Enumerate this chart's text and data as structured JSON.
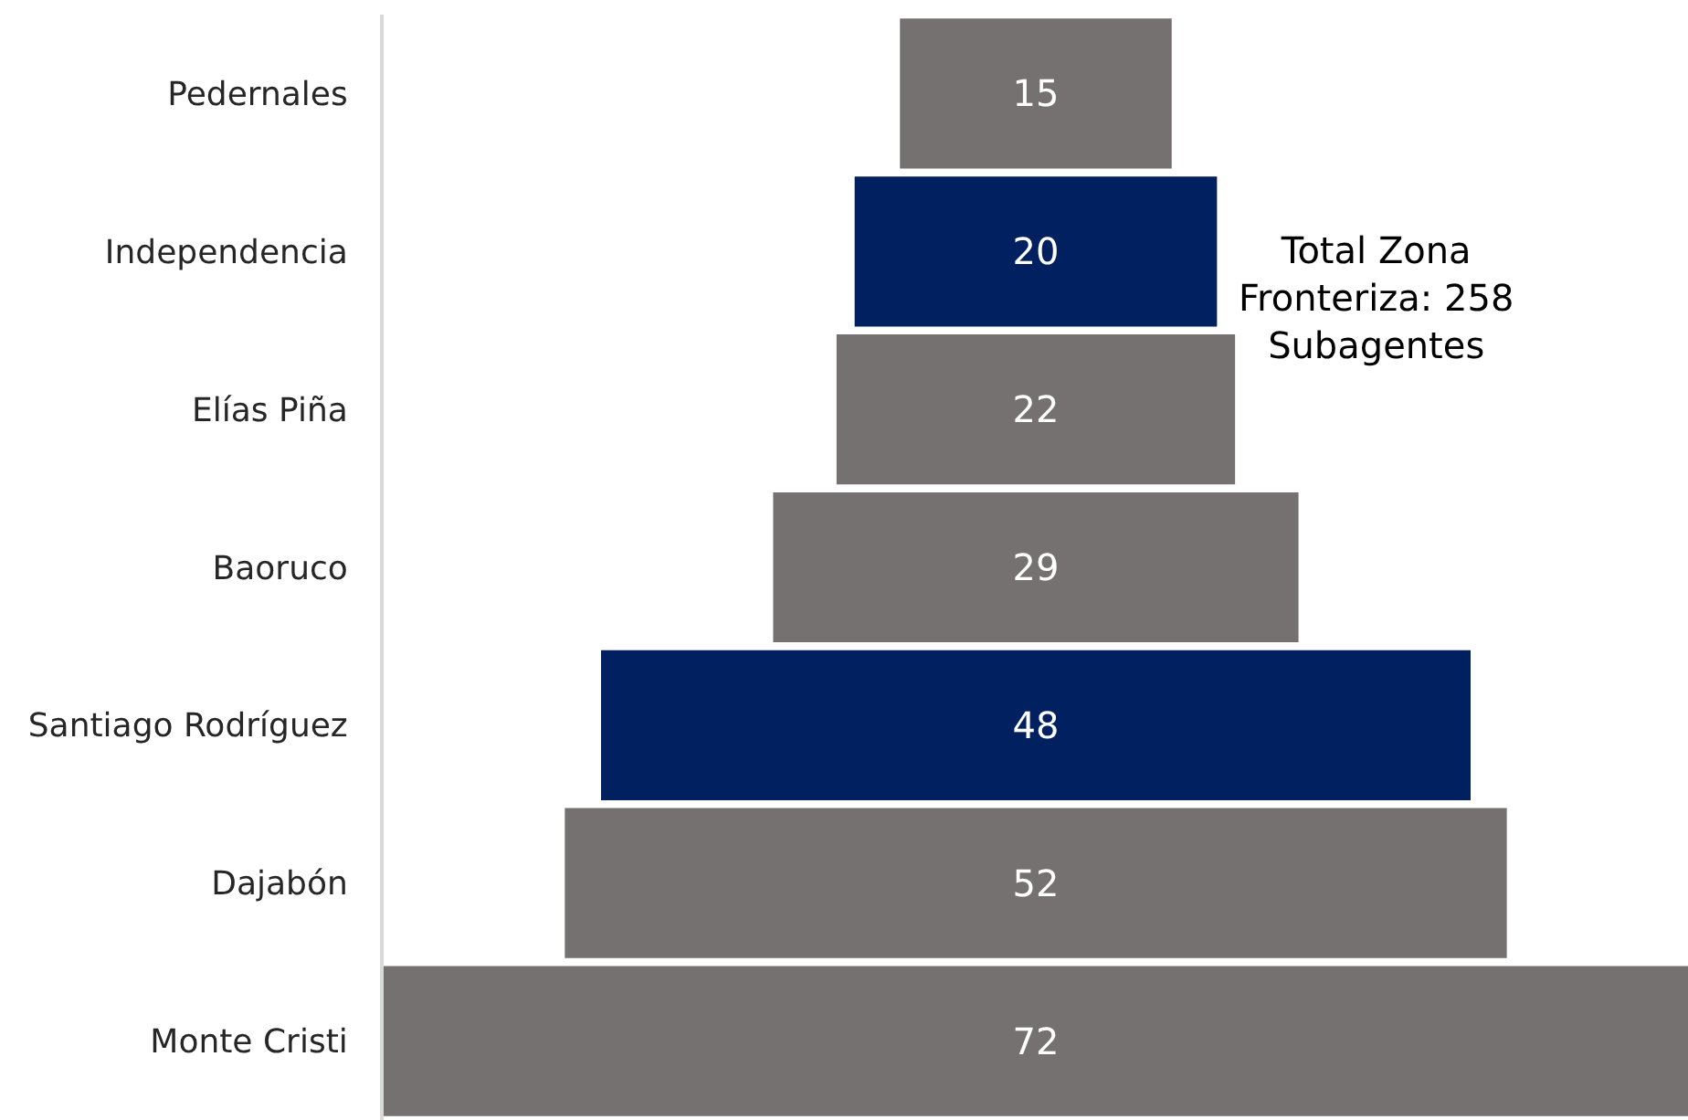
{
  "chart_data": {
    "type": "other",
    "categories": [
      "Pedernales",
      "Independencia",
      "Elías Piña",
      "Baoruco",
      "Santiago Rodríguez",
      "Dajabón",
      "Monte Cristi"
    ],
    "values": [
      15,
      20,
      22,
      29,
      48,
      52,
      72
    ],
    "colors": [
      "#767171",
      "#002060",
      "#767171",
      "#767171",
      "#002060",
      "#767171",
      "#767171"
    ],
    "data_labels": true,
    "annotations": [
      "Total Zona\nFronteriza: 258\nSubagentes"
    ]
  }
}
